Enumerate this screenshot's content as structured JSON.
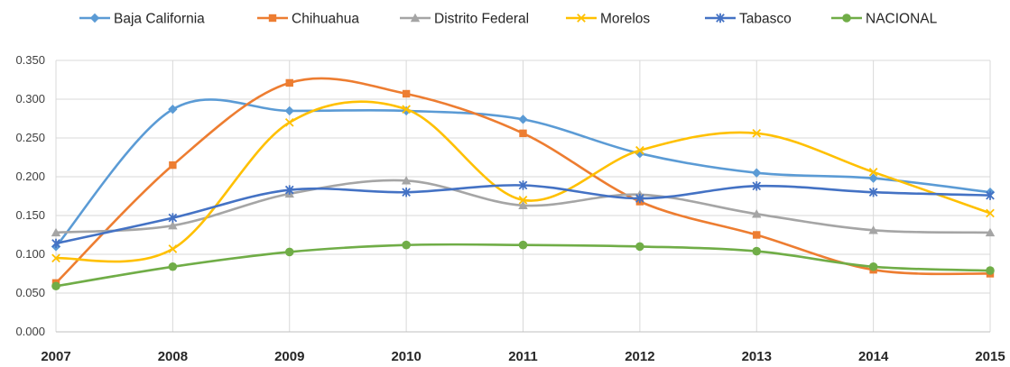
{
  "chart_data": {
    "type": "line",
    "smooth": true,
    "x": [
      "2007",
      "2008",
      "2009",
      "2010",
      "2011",
      "2012",
      "2013",
      "2014",
      "2015"
    ],
    "ylim": [
      0,
      0.35
    ],
    "yticks": [
      "0.000",
      "0.050",
      "0.100",
      "0.150",
      "0.200",
      "0.250",
      "0.300",
      "0.350"
    ],
    "grid": true,
    "legend_position": "top",
    "series": [
      {
        "name": "Baja California",
        "color": "#5b9bd5",
        "marker": "diamond",
        "values": [
          0.11,
          0.287,
          0.285,
          0.285,
          0.274,
          0.23,
          0.205,
          0.198,
          0.18
        ]
      },
      {
        "name": "Chihuahua",
        "color": "#ed7d31",
        "marker": "square",
        "values": [
          0.063,
          0.215,
          0.321,
          0.307,
          0.256,
          0.168,
          0.125,
          0.08,
          0.075
        ]
      },
      {
        "name": "Distrito Federal",
        "color": "#a5a5a5",
        "marker": "triangle",
        "values": [
          0.128,
          0.137,
          0.178,
          0.195,
          0.163,
          0.177,
          0.152,
          0.131,
          0.128
        ]
      },
      {
        "name": "Morelos",
        "color": "#ffc000",
        "marker": "x",
        "values": [
          0.095,
          0.107,
          0.27,
          0.287,
          0.17,
          0.234,
          0.256,
          0.206,
          0.153
        ]
      },
      {
        "name": "Tabasco",
        "color": "#4472c4",
        "marker": "star",
        "values": [
          0.114,
          0.147,
          0.183,
          0.18,
          0.189,
          0.172,
          0.188,
          0.18,
          0.176
        ]
      },
      {
        "name": "NACIONAL",
        "color": "#70ad47",
        "marker": "circle",
        "values": [
          0.059,
          0.084,
          0.103,
          0.112,
          0.112,
          0.11,
          0.104,
          0.084,
          0.079
        ]
      }
    ]
  }
}
